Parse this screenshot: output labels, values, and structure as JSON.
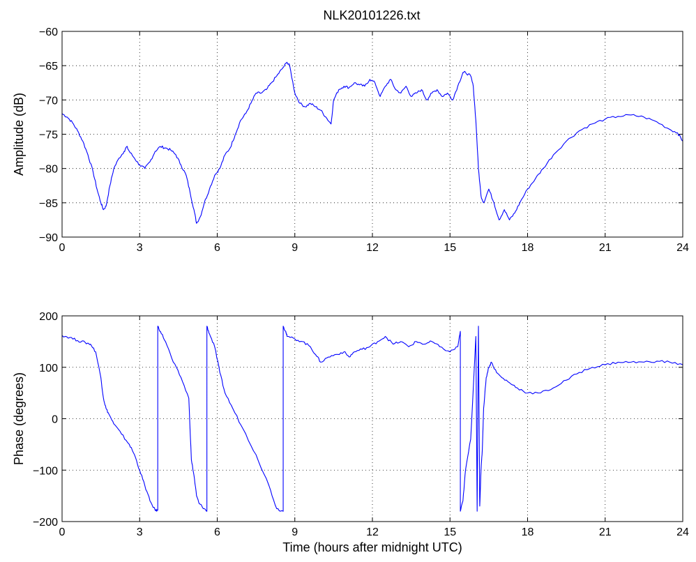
{
  "figure": {
    "title": "NLK20101226.txt"
  },
  "colors": {
    "series": "#0000ff",
    "axes": "#000000",
    "background": "#ffffff"
  },
  "chart_data": [
    {
      "type": "line",
      "title": "NLK20101226.txt",
      "xlabel": "",
      "ylabel": "Amplitude (dB)",
      "xlim": [
        0,
        24
      ],
      "ylim": [
        -90,
        -60
      ],
      "xticks": [
        0,
        3,
        6,
        9,
        12,
        15,
        18,
        21,
        24
      ],
      "yticks": [
        -90,
        -85,
        -80,
        -75,
        -70,
        -65,
        -60
      ],
      "grid": true,
      "x": [
        0,
        0.2,
        0.4,
        0.6,
        0.8,
        1.0,
        1.2,
        1.35,
        1.5,
        1.6,
        1.7,
        1.85,
        2.0,
        2.2,
        2.4,
        2.5,
        2.6,
        2.8,
        3.0,
        3.2,
        3.4,
        3.6,
        3.8,
        4.0,
        4.2,
        4.4,
        4.6,
        4.8,
        4.95,
        5.1,
        5.2,
        5.35,
        5.5,
        5.7,
        5.9,
        6.1,
        6.3,
        6.5,
        6.7,
        6.9,
        7.1,
        7.3,
        7.5,
        7.7,
        7.9,
        8.1,
        8.3,
        8.5,
        8.7,
        8.8,
        9.0,
        9.2,
        9.4,
        9.6,
        9.8,
        10.0,
        10.2,
        10.4,
        10.5,
        10.7,
        10.9,
        11.1,
        11.3,
        11.5,
        11.7,
        11.9,
        12.1,
        12.3,
        12.5,
        12.7,
        12.9,
        13.1,
        13.3,
        13.5,
        13.7,
        13.9,
        14.1,
        14.3,
        14.5,
        14.7,
        14.9,
        15.1,
        15.3,
        15.5,
        15.6,
        15.8,
        15.9,
        16.0,
        16.1,
        16.2,
        16.3,
        16.5,
        16.7,
        16.9,
        17.1,
        17.3,
        17.5,
        17.7,
        18.0,
        18.3,
        18.6,
        19.0,
        19.5,
        20.0,
        20.5,
        21.0,
        21.5,
        22.0,
        22.5,
        23.0,
        23.5,
        23.8,
        24.0
      ],
      "series": [
        {
          "values": [
            -72,
            -72.5,
            -73.3,
            -74.5,
            -76,
            -78,
            -80.5,
            -83,
            -85,
            -86,
            -85.5,
            -82.5,
            -80,
            -78.5,
            -77.5,
            -76.8,
            -77.5,
            -78.5,
            -79.5,
            -80,
            -79,
            -77.5,
            -76.8,
            -77,
            -77.3,
            -78,
            -79.5,
            -81,
            -83.5,
            -86,
            -88,
            -87,
            -85,
            -83,
            -81,
            -80,
            -78,
            -77,
            -75,
            -73,
            -72,
            -70.5,
            -69,
            -69,
            -68.5,
            -67.5,
            -66.5,
            -65.5,
            -64.5,
            -65,
            -69,
            -70.5,
            -71,
            -70.5,
            -71,
            -71.5,
            -72.5,
            -73.5,
            -70,
            -68.5,
            -68,
            -68.2,
            -67.5,
            -67.8,
            -68,
            -67,
            -67.5,
            -69.5,
            -68,
            -67,
            -68.5,
            -69,
            -68,
            -69.5,
            -69,
            -68.5,
            -70,
            -69,
            -68.5,
            -69.5,
            -69,
            -70,
            -68,
            -66,
            -66,
            -66.5,
            -68,
            -73,
            -80,
            -84,
            -85,
            -83,
            -85,
            -87.5,
            -86,
            -87.5,
            -86.5,
            -85,
            -83,
            -81.5,
            -80,
            -78,
            -76,
            -74.5,
            -73.5,
            -72.8,
            -72.4,
            -72.2,
            -72.5,
            -73.2,
            -74.3,
            -74.8,
            -76
          ]
        }
      ]
    },
    {
      "type": "line",
      "title": "",
      "xlabel": "Time (hours after midnight UTC)",
      "ylabel": "Phase (degrees)",
      "xlim": [
        0,
        24
      ],
      "ylim": [
        -200,
        200
      ],
      "xticks": [
        0,
        3,
        6,
        9,
        12,
        15,
        18,
        21,
        24
      ],
      "yticks": [
        -200,
        -100,
        0,
        100,
        200
      ],
      "grid": true,
      "x": [
        0,
        0.3,
        0.6,
        0.9,
        1.1,
        1.3,
        1.5,
        1.6,
        1.7,
        1.8,
        2.0,
        2.3,
        2.6,
        2.8,
        3.0,
        3.2,
        3.4,
        3.6,
        3.7,
        3.7,
        3.8,
        4.0,
        4.3,
        4.6,
        4.9,
        5.0,
        5.1,
        5.2,
        5.3,
        5.5,
        5.6,
        5.6,
        5.7,
        5.9,
        6.1,
        6.3,
        6.6,
        7.0,
        7.5,
        8.0,
        8.3,
        8.55,
        8.55,
        8.65,
        8.7,
        9.0,
        9.3,
        9.6,
        9.8,
        10.0,
        10.3,
        10.6,
        10.9,
        11.1,
        11.3,
        11.6,
        11.9,
        12.2,
        12.5,
        12.8,
        13.1,
        13.4,
        13.7,
        14.0,
        14.3,
        14.6,
        15.0,
        15.3,
        15.4,
        15.4,
        15.5,
        15.6,
        15.8,
        16.0,
        16.05,
        16.1,
        16.15,
        16.2,
        16.25,
        16.3,
        16.4,
        16.5,
        16.6,
        16.8,
        17.0,
        17.3,
        17.6,
        18.0,
        18.5,
        19.0,
        19.5,
        20.0,
        20.5,
        21.0,
        21.5,
        22.0,
        22.5,
        23.0,
        23.5,
        24.0
      ],
      "series": [
        {
          "values": [
            162,
            158,
            152,
            148,
            145,
            130,
            80,
            40,
            20,
            10,
            -10,
            -30,
            -50,
            -70,
            -100,
            -130,
            -160,
            -178,
            -178,
            180,
            170,
            150,
            110,
            80,
            40,
            -80,
            -110,
            -150,
            -165,
            -175,
            -180,
            180,
            165,
            140,
            90,
            50,
            20,
            -20,
            -70,
            -130,
            -175,
            -180,
            180,
            170,
            160,
            155,
            150,
            140,
            125,
            110,
            120,
            125,
            130,
            120,
            130,
            135,
            140,
            150,
            160,
            145,
            150,
            140,
            150,
            145,
            150,
            140,
            130,
            140,
            170,
            -180,
            -160,
            -100,
            -40,
            160,
            -180,
            180,
            -170,
            -100,
            -60,
            20,
            80,
            100,
            110,
            90,
            80,
            70,
            60,
            50,
            50,
            60,
            75,
            90,
            100,
            105,
            110,
            110,
            110,
            112,
            110,
            105
          ]
        }
      ]
    }
  ]
}
